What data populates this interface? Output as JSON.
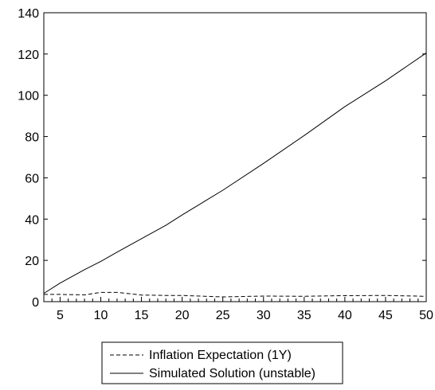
{
  "chart_data": {
    "type": "line",
    "title": "",
    "xlabel": "",
    "ylabel": "",
    "xlim": [
      3,
      50
    ],
    "ylim": [
      0,
      140
    ],
    "x_ticks": [
      5,
      10,
      15,
      20,
      25,
      30,
      35,
      40,
      45,
      50
    ],
    "y_ticks": [
      0,
      20,
      40,
      60,
      80,
      100,
      120,
      140
    ],
    "x_tick_labels": [
      "5",
      "10",
      "15",
      "20",
      "25",
      "30",
      "35",
      "40",
      "45",
      "50"
    ],
    "y_tick_labels": [
      "0",
      "20",
      "40",
      "60",
      "80",
      "100",
      "120",
      "140"
    ],
    "grid": false,
    "legend_position": "bottom-center",
    "x": [
      3,
      5,
      8,
      10,
      12,
      15,
      18,
      20,
      25,
      30,
      35,
      40,
      45,
      50
    ],
    "series": [
      {
        "name": "Inflation Expectation (1Y)",
        "line_style": "dashed",
        "color": "#000000",
        "values": [
          3.5,
          3.5,
          3.3,
          4.5,
          4.5,
          3.2,
          3.0,
          3.0,
          2.3,
          2.7,
          2.6,
          2.9,
          3.0,
          2.6
        ]
      },
      {
        "name": "Simulated Solution (unstable)",
        "line_style": "solid",
        "color": "#000000",
        "values": [
          4.0,
          9.0,
          15.5,
          19.5,
          24.0,
          30.5,
          37.0,
          42.0,
          54.0,
          67.0,
          80.5,
          94.5,
          107.0,
          120.5
        ]
      }
    ]
  }
}
